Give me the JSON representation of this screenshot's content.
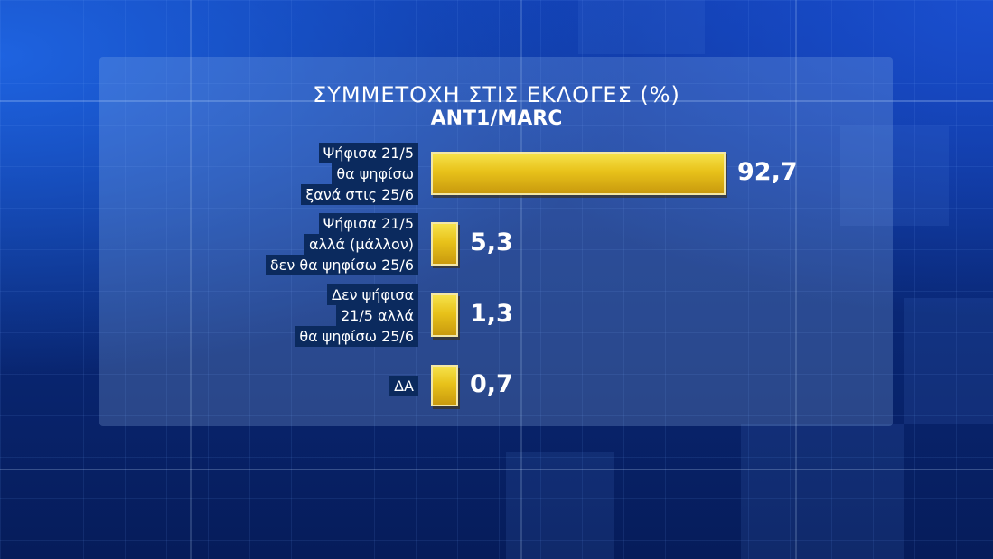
{
  "chart_data": {
    "type": "bar",
    "orientation": "horizontal",
    "title": "ΣΥΜΜΕΤΟΧΗ ΣΤΙΣ ΕΚΛΟΓΕΣ (%)",
    "subtitle": "ΑΝΤ1/MARC",
    "categories": [
      [
        "Ψήφισα 21/5",
        "θα ψηφίσω",
        "ξανά στις 25/6"
      ],
      [
        "Ψήφισα  21/5",
        "αλλά (μάλλον)",
        "δεν θα ψηφίσω 25/6"
      ],
      [
        "Δεν ψήφισα",
        "21/5 αλλά",
        "θα ψηφίσω  25/6"
      ],
      [
        "ΔΑ"
      ]
    ],
    "values": [
      92.7,
      5.3,
      1.3,
      0.7
    ],
    "value_labels": [
      "92,7",
      "5,3",
      "1,3",
      "0,7"
    ],
    "bar_color": "#e8c21a"
  }
}
